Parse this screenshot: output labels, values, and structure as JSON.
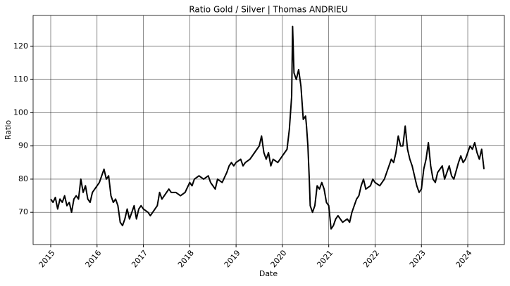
{
  "chart_data": {
    "type": "line",
    "title": "Ratio Gold / Silver | Thomas ANDRIEU",
    "x_label": "Date",
    "y_label": "Ratio",
    "x": [
      2015.0,
      2015.05,
      2015.1,
      2015.15,
      2015.2,
      2015.25,
      2015.3,
      2015.35,
      2015.4,
      2015.45,
      2015.5,
      2015.55,
      2015.6,
      2015.65,
      2015.7,
      2015.75,
      2015.8,
      2015.85,
      2015.9,
      2015.95,
      2016.0,
      2016.05,
      2016.1,
      2016.15,
      2016.2,
      2016.25,
      2016.3,
      2016.35,
      2016.4,
      2016.45,
      2016.5,
      2016.55,
      2016.6,
      2016.65,
      2016.7,
      2016.75,
      2016.8,
      2016.85,
      2016.9,
      2016.95,
      2017.0,
      2017.1,
      2017.15,
      2017.2,
      2017.3,
      2017.35,
      2017.4,
      2017.5,
      2017.55,
      2017.6,
      2017.7,
      2017.8,
      2017.9,
      2018.0,
      2018.05,
      2018.1,
      2018.2,
      2018.3,
      2018.4,
      2018.45,
      2018.5,
      2018.55,
      2018.6,
      2018.7,
      2018.8,
      2018.85,
      2018.9,
      2018.95,
      2019.0,
      2019.1,
      2019.15,
      2019.2,
      2019.3,
      2019.4,
      2019.5,
      2019.55,
      2019.6,
      2019.65,
      2019.7,
      2019.75,
      2019.8,
      2019.9,
      2020.0,
      2020.05,
      2020.1,
      2020.15,
      2020.2,
      2020.22,
      2020.25,
      2020.3,
      2020.35,
      2020.4,
      2020.45,
      2020.5,
      2020.52,
      2020.55,
      2020.58,
      2020.6,
      2020.65,
      2020.7,
      2020.75,
      2020.8,
      2020.85,
      2020.9,
      2020.95,
      2021.0,
      2021.05,
      2021.1,
      2021.15,
      2021.2,
      2021.3,
      2021.4,
      2021.45,
      2021.5,
      2021.55,
      2021.6,
      2021.65,
      2021.7,
      2021.75,
      2021.8,
      2021.9,
      2021.95,
      2022.0,
      2022.1,
      2022.15,
      2022.2,
      2022.3,
      2022.35,
      2022.4,
      2022.45,
      2022.5,
      2022.55,
      2022.6,
      2022.65,
      2022.7,
      2022.75,
      2022.8,
      2022.9,
      2022.95,
      2023.0,
      2023.05,
      2023.1,
      2023.15,
      2023.2,
      2023.25,
      2023.3,
      2023.35,
      2023.4,
      2023.45,
      2023.5,
      2023.55,
      2023.6,
      2023.65,
      2023.7,
      2023.8,
      2023.85,
      2023.9,
      2023.95,
      2024.0,
      2024.05,
      2024.1,
      2024.15,
      2024.2,
      2024.25,
      2024.3,
      2024.35
    ],
    "series": [
      {
        "name": "Ratio",
        "color": "#000000",
        "values": [
          74,
          73,
          74.5,
          71,
          74,
          73,
          75,
          72,
          73,
          70,
          74,
          75,
          74,
          80,
          76,
          78,
          74,
          73,
          76,
          77,
          78,
          79,
          81,
          83,
          80,
          81,
          75,
          73,
          74,
          72,
          67,
          66,
          68,
          71,
          68,
          70,
          72,
          68,
          71,
          72,
          71,
          70,
          69,
          70,
          72,
          76,
          74,
          76,
          77,
          76,
          76,
          75,
          76,
          79,
          78,
          80,
          81,
          80,
          81,
          79,
          78,
          77,
          80,
          79,
          82,
          84,
          85,
          84,
          85,
          86,
          84,
          85,
          86,
          88,
          90,
          93,
          88,
          86,
          88,
          84,
          86,
          85,
          87,
          88,
          89,
          95,
          105,
          126,
          112,
          110,
          113,
          108,
          98,
          99,
          96,
          90,
          80,
          72,
          70,
          72,
          78,
          77,
          79,
          77,
          73,
          72,
          65,
          66,
          68,
          69,
          67,
          68,
          67,
          70,
          72,
          74,
          75,
          78,
          80,
          77,
          78,
          80,
          79,
          78,
          79,
          80,
          84,
          86,
          85,
          88,
          93,
          90,
          90,
          96,
          89,
          86,
          84,
          78,
          76,
          77,
          83,
          86,
          91,
          84,
          80,
          79,
          82,
          83,
          84,
          80,
          82,
          84,
          81,
          80,
          85,
          87,
          85,
          86,
          88,
          90,
          89,
          91,
          88,
          86,
          89,
          83
        ]
      }
    ],
    "xlim": [
      2014.62,
      2024.79
    ],
    "xticks": [
      2015,
      2016,
      2017,
      2018,
      2019,
      2020,
      2021,
      2022,
      2023,
      2024
    ],
    "ylim": [
      60.3,
      129.3
    ],
    "yticks": [
      70,
      80,
      90,
      100,
      110,
      120
    ],
    "grid": true
  }
}
